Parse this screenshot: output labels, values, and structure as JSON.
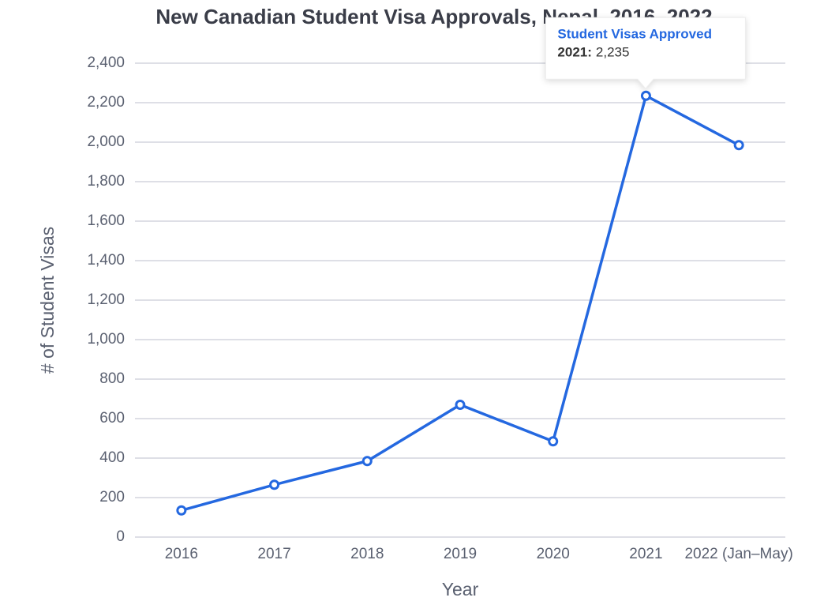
{
  "chart_data": {
    "type": "line",
    "title": "New Canadian Student Visa Approvals, Nepal, 2016–2022",
    "x_label": "Year",
    "y_label": "# of Student Visas",
    "categories": [
      "2016",
      "2017",
      "2018",
      "2019",
      "2020",
      "2021",
      "2022 (Jan–May)"
    ],
    "series": [
      {
        "name": "Student Visas Approved",
        "color": "#2468e0",
        "values": [
          135,
          265,
          385,
          670,
          485,
          2235,
          1985
        ],
        "value_labels": [
          null,
          null,
          null,
          null,
          null,
          "2,235",
          null
        ]
      }
    ],
    "ylim": [
      0,
      2400
    ],
    "yticks": [
      0,
      200,
      400,
      600,
      800,
      {
        "value": 1000,
        "label": "1,000"
      },
      {
        "value": 1200,
        "label": "1,200"
      },
      {
        "value": 1400,
        "label": "1,400"
      },
      {
        "value": 1600,
        "label": "1,600"
      },
      {
        "value": 1800,
        "label": "1,800"
      },
      {
        "value": 2000,
        "label": "2,000"
      },
      {
        "value": 2200,
        "label": "2,200"
      },
      {
        "value": 2400,
        "label": "2,400"
      }
    ],
    "grid": true
  }
}
